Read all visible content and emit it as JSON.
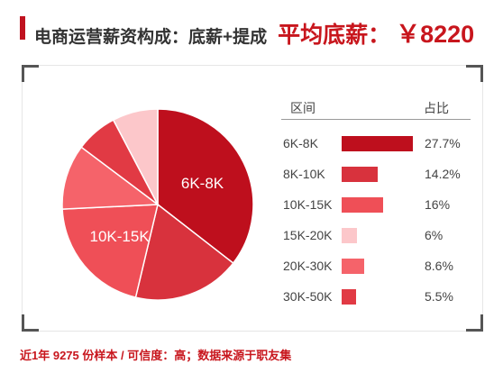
{
  "header": {
    "title": "电商运营薪资构成：底薪+提成",
    "avg_label": "平均底薪：",
    "avg_value": "￥8220"
  },
  "chart_data": {
    "type": "pie",
    "columns": [
      "区间",
      "占比"
    ],
    "categories": [
      "6K-8K",
      "8K-10K",
      "10K-15K",
      "15K-20K",
      "20K-30K",
      "30K-50K"
    ],
    "values": [
      27.7,
      14.2,
      16,
      6,
      8.6,
      5.5
    ],
    "value_labels": [
      "27.7%",
      "14.2%",
      "16%",
      "6%",
      "8.6%",
      "5.5%"
    ],
    "slice_labels": [
      "6K-8K",
      "",
      "10K-15K",
      "",
      "",
      ""
    ],
    "colors": [
      "#be0f1d",
      "#d8323d",
      "#ef4f57",
      "#fcc7ca",
      "#f5636a",
      "#e13a44"
    ],
    "pie_order": [
      0,
      1,
      2,
      4,
      5,
      3
    ],
    "bar_max_value": 27.7
  },
  "footer": {
    "text": "近1年 9275 份样本 / 可信度：高；数据来源于职友集"
  }
}
